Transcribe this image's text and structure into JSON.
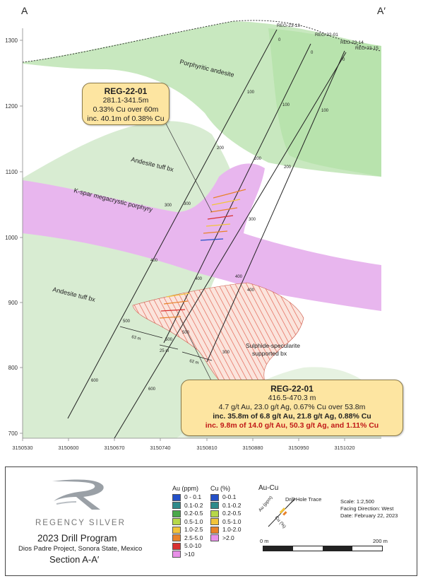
{
  "section_letters": {
    "left": "A",
    "right": "A′"
  },
  "y_axis_labels": [
    "1300",
    "1200",
    "1100",
    "1000",
    "900",
    "800",
    "700"
  ],
  "x_axis_labels": [
    "3150530",
    "3150600",
    "3150670",
    "3150740",
    "3150810",
    "3150880",
    "3150950",
    "3151020"
  ],
  "units": {
    "porphyritic": "Porphyritic andesite",
    "tuff_upper": "Andesite tuff bx",
    "kspar": "K-spar megacrystic porphyry",
    "tuff_lower": "Andesite tuff bx",
    "sulphide_1": "Sulphide-specularite",
    "sulphide_2": "supported bx"
  },
  "holes": {
    "h13": "REG-23-13",
    "h01": "REG-22-01",
    "h14": "REG-23-14",
    "h15": "REG-23-15"
  },
  "depth_ticks": [
    "0",
    "100",
    "200",
    "300",
    "400",
    "500",
    "600"
  ],
  "spacings": {
    "a": "63 m",
    "b": "25 m",
    "c": "62 m"
  },
  "callout_top": {
    "title": "REG-22-01",
    "line1": "281.1-341.5m",
    "line2": "0.33% Cu over 60m",
    "line3": "inc. 40.1m of 0.38% Cu"
  },
  "callout_bottom": {
    "title": "REG-22-01",
    "line1": "416.5-470.3 m",
    "line2": "4.7 g/t Au, 23.0 g/t Ag, 0.67% Cu over 53.8m",
    "line3": "inc. 35.8m of 6.8 g/t Au, 21.8 g/t Ag, 0.88% Cu",
    "line4": "inc. 9.8m of 14.0 g/t Au, 50.3 g/t Ag, and 1.11% Cu"
  },
  "legend": {
    "company": "REGENCY SILVER",
    "program": "2023 Drill Program",
    "project": "Dios Padre Project, Sonora State, Mexico",
    "section": "Section A-A′",
    "au_title": "Au (ppm)",
    "au_items": [
      {
        "label": "0 - 0.1",
        "color": "#2450c8"
      },
      {
        "label": "0.1-0.2",
        "color": "#2f8a8a"
      },
      {
        "label": "0.2-0.5",
        "color": "#4aa84a"
      },
      {
        "label": "0.5-1.0",
        "color": "#b6d84a"
      },
      {
        "label": "1.0-2.5",
        "color": "#f2c43a"
      },
      {
        "label": "2.5-5.0",
        "color": "#e8822a"
      },
      {
        "label": "5.0-10",
        "color": "#d83030"
      },
      {
        "label": ">10",
        "color": "#e890e8"
      }
    ],
    "cu_title": "Cu (%)",
    "cu_items": [
      {
        "label": "0-0.1",
        "color": "#2450c8"
      },
      {
        "label": "0.1-0.2",
        "color": "#2f8a8a"
      },
      {
        "label": "0.2-0.5",
        "color": "#b6d84a"
      },
      {
        "label": "0.5-1.0",
        "color": "#f2c43a"
      },
      {
        "label": "1.0-2.0",
        "color": "#e8822a"
      },
      {
        "label": ">2.0",
        "color": "#e890e8"
      }
    ],
    "aucu_title": "Au-Cu",
    "trace_label": "Drill Hole Trace",
    "au_axis": "Au (ppm)",
    "cu_axis": "Cu (%)",
    "scale": "Scale: 1:2,500",
    "facing": "Facing Direction: West",
    "date": "Date: February 22, 2023",
    "bar_start": "0 m",
    "bar_end": "200 m"
  }
}
